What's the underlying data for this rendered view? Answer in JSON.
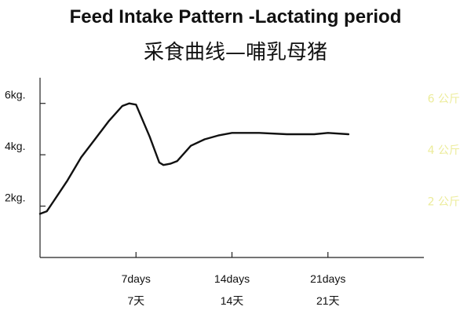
{
  "title": "Feed Intake Pattern -Lactating period",
  "subtitle": "采食曲线—哺乳母猪",
  "chart_data": {
    "type": "line",
    "title": "Feed Intake Pattern -Lactating period",
    "subtitle": "采食曲线—哺乳母猪",
    "xlabel": "",
    "ylabel": "",
    "x_ticks": [
      {
        "day": 7,
        "label": "7days",
        "label_cn": "7天"
      },
      {
        "day": 14,
        "label": "14days",
        "label_cn": "14天"
      },
      {
        "day": 21,
        "label": "21days",
        "label_cn": "21天"
      }
    ],
    "y_ticks": [
      {
        "value": 2,
        "label": "2kg.",
        "label_cn": "2 公斤"
      },
      {
        "value": 4,
        "label": "4kg.",
        "label_cn": "4 公斤"
      },
      {
        "value": 6,
        "label": "6kg.",
        "label_cn": "6 公斤"
      }
    ],
    "xlim": [
      0,
      28
    ],
    "ylim": [
      0,
      7
    ],
    "grid": false,
    "series": [
      {
        "x": [
          0,
          0.5,
          1,
          2,
          3,
          4,
          5,
          6,
          6.5,
          7,
          8,
          8.7,
          9,
          9.5,
          10,
          11,
          12,
          13,
          14,
          16,
          18,
          20,
          21,
          22.5
        ],
        "y": [
          1.7,
          1.8,
          2.2,
          3.0,
          3.9,
          4.6,
          5.3,
          5.9,
          6.0,
          5.95,
          4.7,
          3.7,
          3.6,
          3.65,
          3.75,
          4.35,
          4.6,
          4.75,
          4.85,
          4.85,
          4.8,
          4.8,
          4.85,
          4.8
        ]
      }
    ],
    "colors": {
      "line": "#111111",
      "axis": "#222222",
      "right_labels": "#ecec9a"
    }
  }
}
